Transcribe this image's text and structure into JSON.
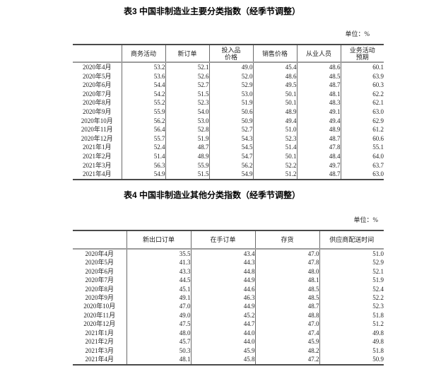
{
  "document": {
    "tables": [
      {
        "id": "table3",
        "title": "表3 中国非制造业主要分类指数（经季节调整）",
        "unit_label": "单位：%",
        "columns": [
          "",
          "商务活动",
          "新订单",
          [
            "投入品",
            "价格"
          ],
          "销售价格",
          "从业人员",
          [
            "业务活动",
            "预期"
          ]
        ],
        "rows": [
          {
            "label": "2020年4月",
            "values": [
              "53.2",
              "52.1",
              "49.0",
              "45.4",
              "48.6",
              "60.1"
            ]
          },
          {
            "label": "2020年5月",
            "values": [
              "53.6",
              "52.6",
              "52.0",
              "48.6",
              "48.5",
              "63.9"
            ]
          },
          {
            "label": "2020年6月",
            "values": [
              "54.4",
              "52.7",
              "52.9",
              "49.5",
              "48.7",
              "60.3"
            ]
          },
          {
            "label": "2020年7月",
            "values": [
              "54.2",
              "51.5",
              "53.0",
              "50.1",
              "48.1",
              "62.2"
            ]
          },
          {
            "label": "2020年8月",
            "values": [
              "55.2",
              "52.3",
              "51.9",
              "50.1",
              "48.3",
              "62.1"
            ]
          },
          {
            "label": "2020年9月",
            "values": [
              "55.9",
              "54.0",
              "50.6",
              "48.9",
              "49.1",
              "63.0"
            ]
          },
          {
            "label": "2020年10月",
            "values": [
              "56.2",
              "53.0",
              "50.9",
              "49.4",
              "49.4",
              "62.9"
            ]
          },
          {
            "label": "2020年11月",
            "values": [
              "56.4",
              "52.8",
              "52.7",
              "51.0",
              "48.9",
              "61.2"
            ]
          },
          {
            "label": "2020年12月",
            "values": [
              "55.7",
              "51.9",
              "54.3",
              "52.3",
              "48.7",
              "60.6"
            ]
          },
          {
            "label": "2021年1月",
            "values": [
              "52.4",
              "48.7",
              "54.5",
              "51.4",
              "47.8",
              "55.1"
            ]
          },
          {
            "label": "2021年2月",
            "values": [
              "51.4",
              "48.9",
              "54.7",
              "50.1",
              "48.4",
              "64.0"
            ]
          },
          {
            "label": "2021年3月",
            "values": [
              "56.3",
              "55.9",
              "56.2",
              "52.2",
              "49.7",
              "63.7"
            ]
          },
          {
            "label": "2021年4月",
            "values": [
              "54.9",
              "51.5",
              "54.9",
              "51.2",
              "48.7",
              "63.0"
            ]
          }
        ]
      },
      {
        "id": "table4",
        "title": "表4 中国非制造业其他分类指数（经季节调整）",
        "unit_label": "单位：%",
        "columns": [
          "",
          "新出口订单",
          "在手订单",
          "存货",
          "供应商配送时间"
        ],
        "rows": [
          {
            "label": "2020年4月",
            "values": [
              "35.5",
              "43.4",
              "47.0",
              "51.0"
            ]
          },
          {
            "label": "2020年5月",
            "values": [
              "41.3",
              "44.3",
              "47.8",
              "52.9"
            ]
          },
          {
            "label": "2020年6月",
            "values": [
              "43.3",
              "44.8",
              "48.0",
              "52.1"
            ]
          },
          {
            "label": "2020年7月",
            "values": [
              "44.5",
              "44.9",
              "48.1",
              "51.9"
            ]
          },
          {
            "label": "2020年8月",
            "values": [
              "45.1",
              "44.6",
              "48.5",
              "52.4"
            ]
          },
          {
            "label": "2020年9月",
            "values": [
              "49.1",
              "46.3",
              "48.5",
              "52.2"
            ]
          },
          {
            "label": "2020年10月",
            "values": [
              "47.0",
              "44.9",
              "48.7",
              "52.3"
            ]
          },
          {
            "label": "2020年11月",
            "values": [
              "49.0",
              "45.2",
              "48.8",
              "51.8"
            ]
          },
          {
            "label": "2020年12月",
            "values": [
              "47.5",
              "44.7",
              "47.0",
              "51.2"
            ]
          },
          {
            "label": "2021年1月",
            "values": [
              "48.0",
              "44.0",
              "47.4",
              "49.8"
            ]
          },
          {
            "label": "2021年2月",
            "values": [
              "45.7",
              "44.0",
              "45.9",
              "49.8"
            ]
          },
          {
            "label": "2021年3月",
            "values": [
              "50.3",
              "45.9",
              "48.2",
              "51.8"
            ]
          },
          {
            "label": "2021年4月",
            "values": [
              "48.1",
              "45.8",
              "47.2",
              "50.9"
            ]
          }
        ]
      }
    ]
  }
}
